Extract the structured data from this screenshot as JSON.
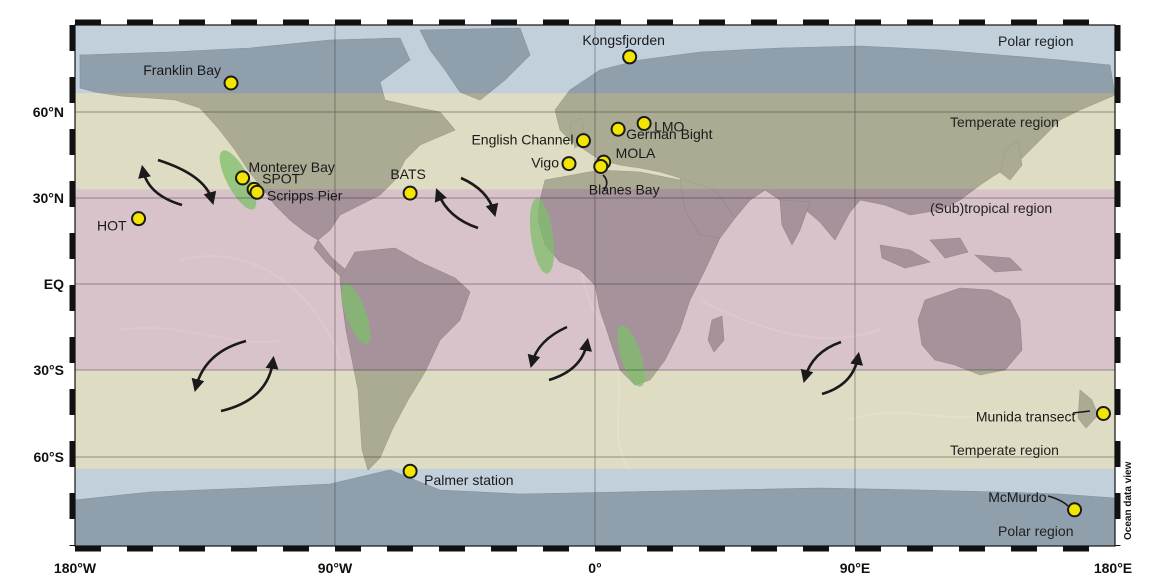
{
  "map": {
    "credit": "Ocean data view",
    "lat_axis": [
      "60°N",
      "30°N",
      "EQ",
      "30°S",
      "60°S"
    ],
    "lon_axis": [
      "180°W",
      "90°W",
      "0°",
      "90°E",
      "180°E"
    ],
    "regions": [
      {
        "key": "polar-north",
        "label": "Polar region",
        "color": "#bcd3e6"
      },
      {
        "key": "temperate-north",
        "label": "Temperate region",
        "color": "#efe9b8"
      },
      {
        "key": "subtropical",
        "label": "(Sub)tropical region",
        "color": "#e6bcc4"
      },
      {
        "key": "temperate-south",
        "label": "Temperate region",
        "color": "#efe9b8"
      },
      {
        "key": "polar-south",
        "label": "Polar region",
        "color": "#bcd3e6"
      }
    ],
    "sites": [
      {
        "name": "Kongsfjorden",
        "lon": 12,
        "lat": 79
      },
      {
        "name": "Franklin Bay",
        "lon": -126,
        "lat": 70
      },
      {
        "name": "LMO",
        "lon": 17,
        "lat": 56
      },
      {
        "name": "German Bight",
        "lon": 8,
        "lat": 54
      },
      {
        "name": "English Channel",
        "lon": -4,
        "lat": 50
      },
      {
        "name": "Monterey Bay",
        "lon": -122,
        "lat": 37
      },
      {
        "name": "SPOT",
        "lon": -118,
        "lat": 33
      },
      {
        "name": "Scripps Pier",
        "lon": -117,
        "lat": 32
      },
      {
        "name": "Vigo",
        "lon": -9,
        "lat": 42
      },
      {
        "name": "MOLA",
        "lon": 3,
        "lat": 42.5
      },
      {
        "name": "Blanes Bay",
        "lon": 2,
        "lat": 41
      },
      {
        "name": "BATS",
        "lon": -64,
        "lat": 31.7
      },
      {
        "name": "HOT",
        "lon": -158,
        "lat": 22.8
      },
      {
        "name": "Munida transect",
        "lon": 176,
        "lat": -45
      },
      {
        "name": "Palmer station",
        "lon": -64,
        "lat": -64.8
      },
      {
        "name": "McMurdo",
        "lon": 166,
        "lat": -77.8
      }
    ],
    "colors": {
      "land": "#5a5f66",
      "ocean": "#c9ccd0",
      "upwelling": "#7fbf6a",
      "site_fill": "#f2e600",
      "site_stroke": "#1a1a1a"
    }
  }
}
